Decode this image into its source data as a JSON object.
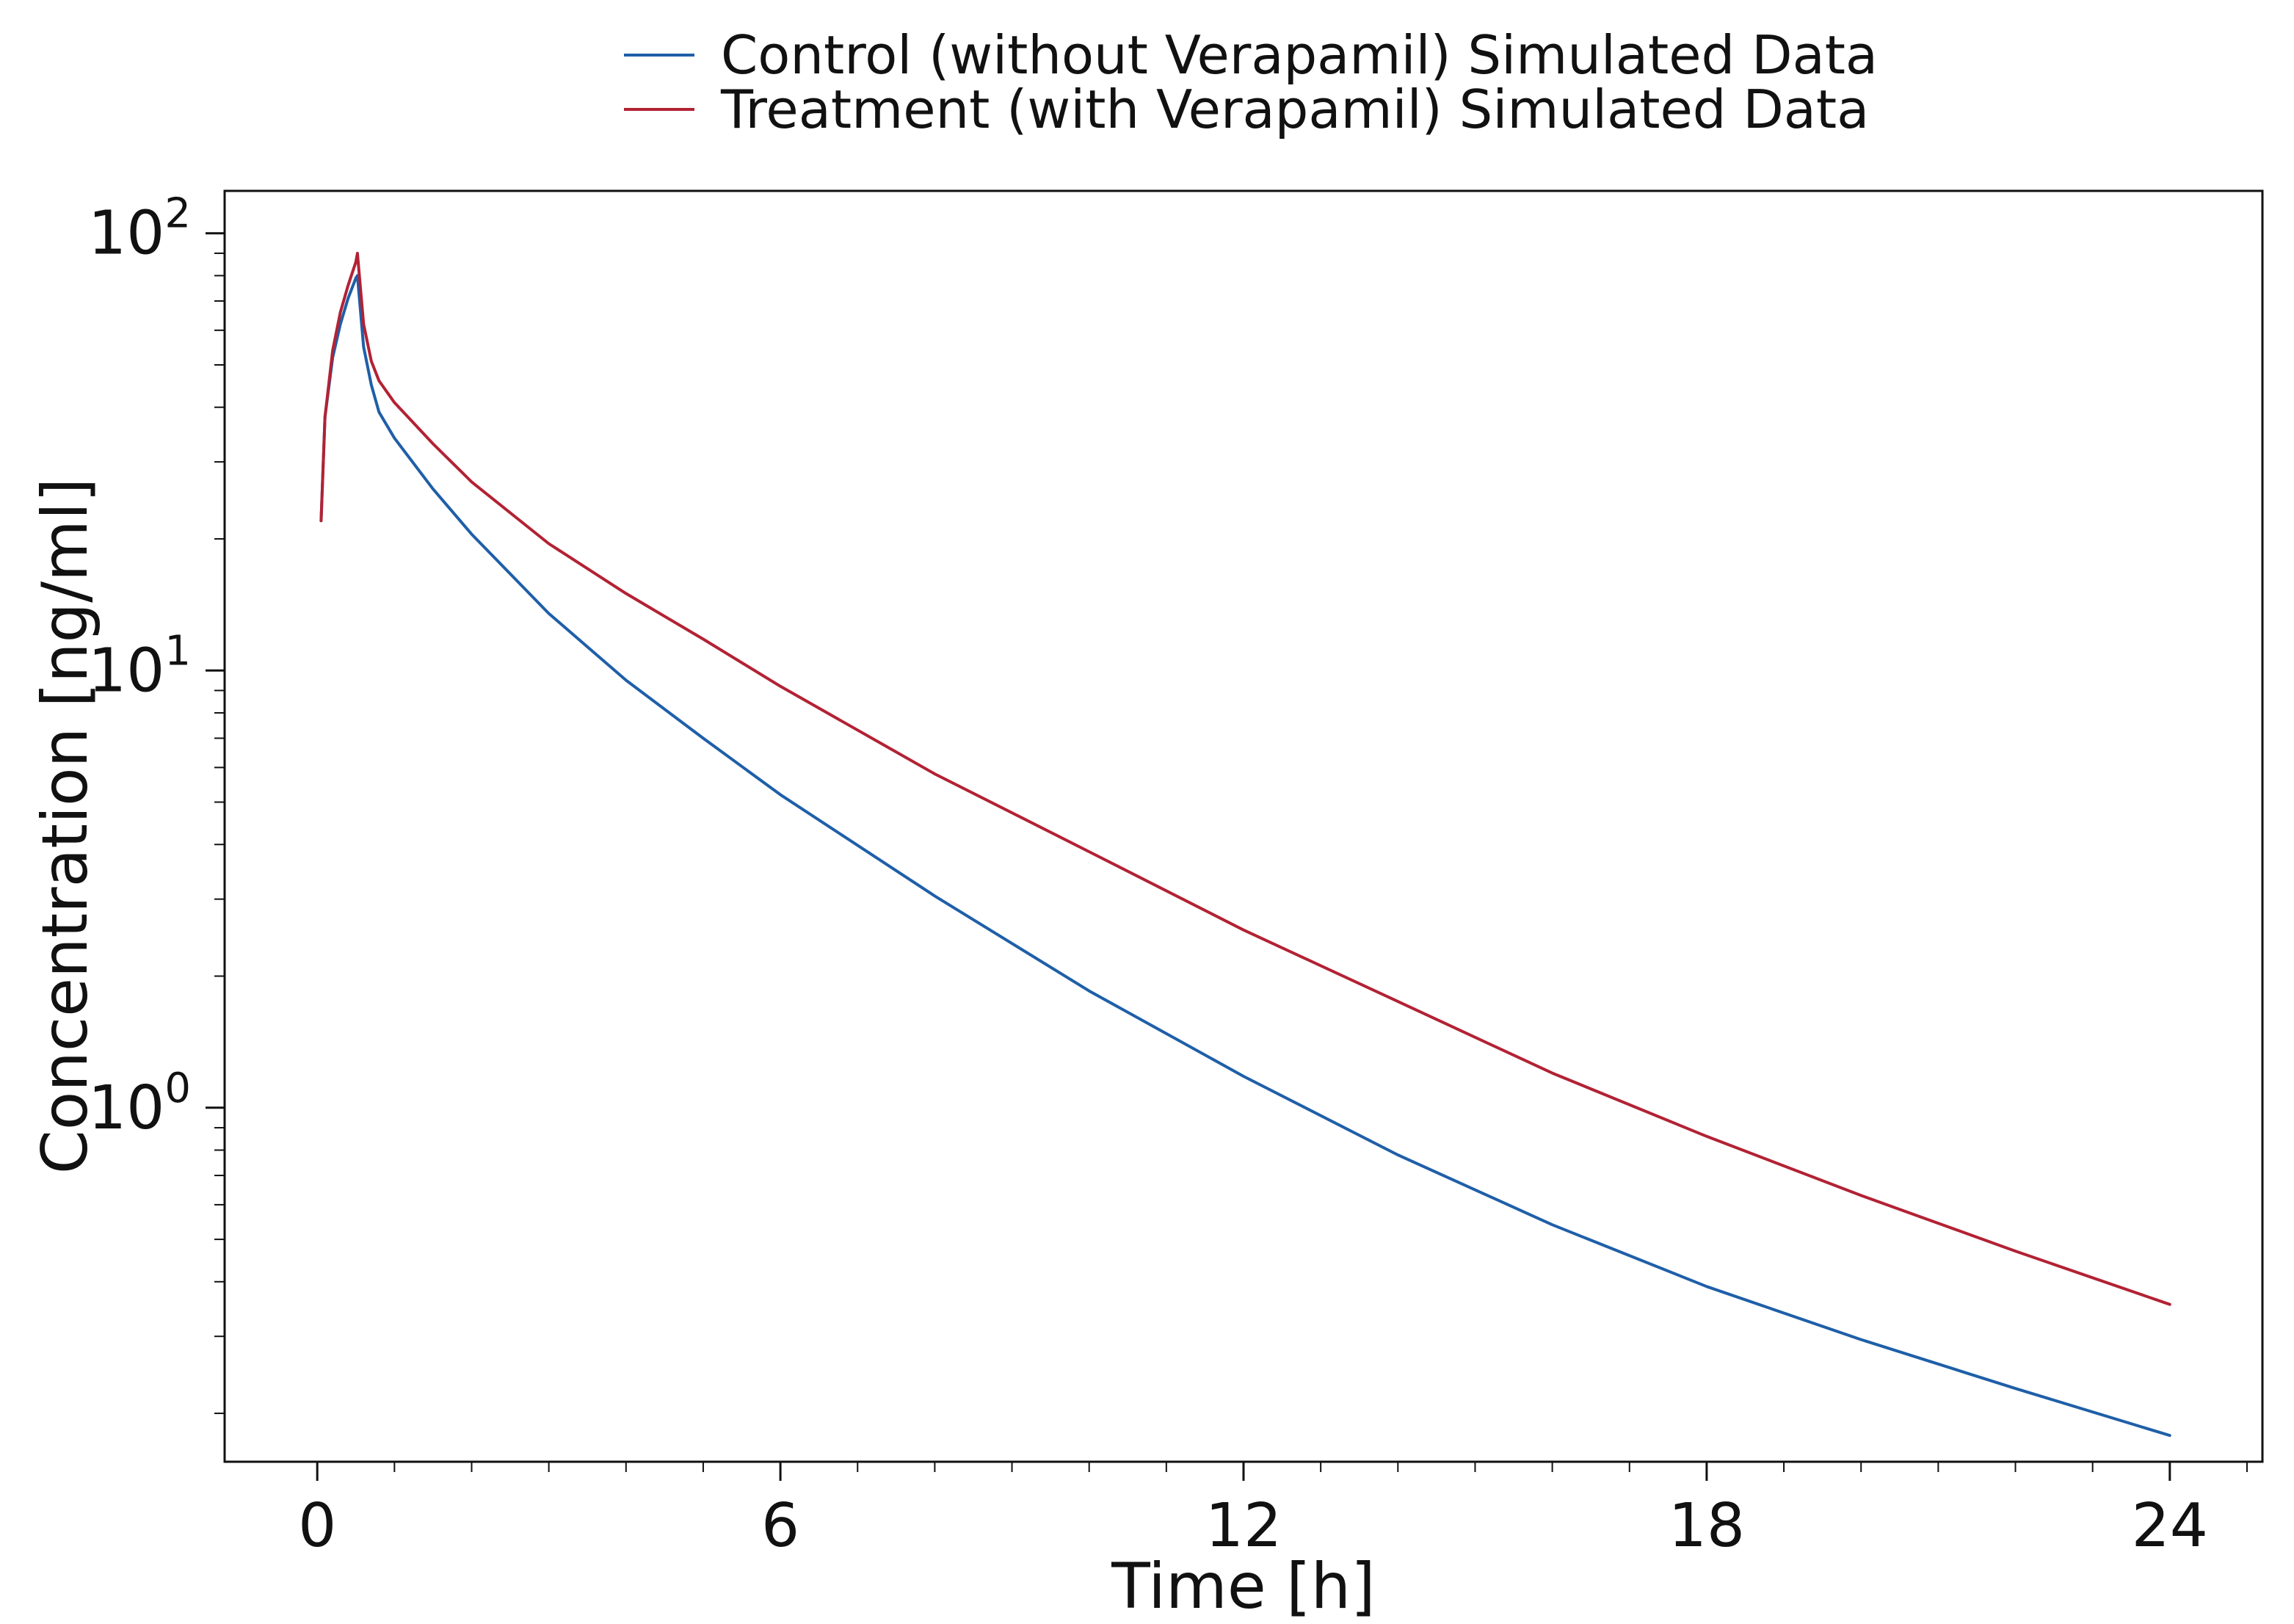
{
  "chart_data": {
    "type": "line",
    "xlabel": "Time [h]",
    "ylabel": "Concentration [ng/ml]",
    "xlim": [
      -1.2,
      25.2
    ],
    "ylim": [
      0.155,
      125
    ],
    "yscale": "log",
    "xticks": [
      0,
      6,
      12,
      18,
      24
    ],
    "xtick_labels": [
      "0",
      "6",
      "12",
      "18",
      "24"
    ],
    "yticks": [
      1,
      10,
      100
    ],
    "ytick_labels": [
      {
        "base": "10",
        "exp": "0"
      },
      {
        "base": "10",
        "exp": "1"
      },
      {
        "base": "10",
        "exp": "2"
      }
    ],
    "grid": false,
    "legend_position": "top-center",
    "series": [
      {
        "name": "Control (without Verapamil) Simulated Data",
        "color": "#1f5fa8",
        "x": [
          0.05,
          0.1,
          0.2,
          0.3,
          0.4,
          0.5,
          0.52,
          0.6,
          0.7,
          0.8,
          1.0,
          1.5,
          2,
          3,
          4,
          5,
          6,
          8,
          10,
          12,
          14,
          16,
          18,
          20,
          22,
          24
        ],
        "y": [
          22,
          38,
          52,
          62,
          71,
          79,
          80,
          55,
          45,
          39,
          34,
          26,
          20.5,
          13.5,
          9.5,
          7.0,
          5.2,
          3.05,
          1.85,
          1.18,
          0.78,
          0.54,
          0.39,
          0.295,
          0.228,
          0.178
        ]
      },
      {
        "name": "Treatment (with Verapamil) Simulated Data",
        "color": "#b22234",
        "x": [
          0.05,
          0.1,
          0.2,
          0.3,
          0.4,
          0.5,
          0.52,
          0.6,
          0.7,
          0.8,
          1.0,
          1.5,
          2,
          3,
          4,
          5,
          6,
          8,
          10,
          12,
          14,
          16,
          18,
          20,
          22,
          24
        ],
        "y": [
          22,
          38,
          54,
          66,
          76,
          86,
          90,
          62,
          51,
          46,
          41,
          33,
          27,
          19.5,
          15,
          11.8,
          9.2,
          5.8,
          3.85,
          2.55,
          1.75,
          1.2,
          0.86,
          0.63,
          0.47,
          0.355
        ]
      }
    ]
  }
}
